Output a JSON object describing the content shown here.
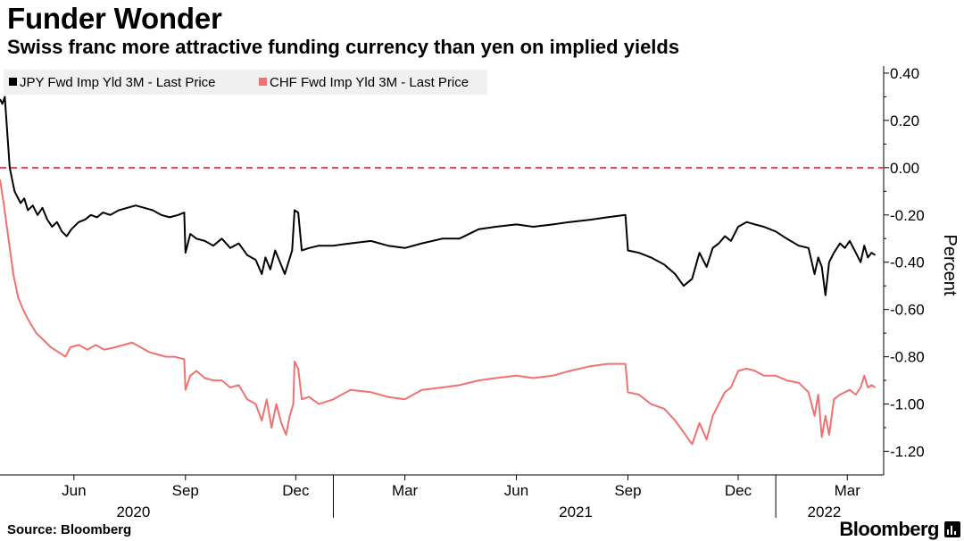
{
  "header": {
    "title": "Funder Wonder",
    "subtitle": "Swiss franc more attractive funding currency than yen on implied yields"
  },
  "footer": {
    "source": "Source: Bloomberg",
    "brand": "Bloomberg",
    "brand_icon": "bloomberg-terminal-icon"
  },
  "chart_data": {
    "type": "line",
    "x_start": "2020-04-01",
    "x_end": "2022-03-31",
    "ylim": [
      -1.3,
      0.43
    ],
    "yticks": [
      0.4,
      0.2,
      0.0,
      -0.2,
      -0.4,
      -0.6,
      -0.8,
      -1.0,
      -1.2
    ],
    "ytick_labels": [
      "0.40",
      "0.20",
      "0.00",
      "-0.20",
      "-0.40",
      "-0.60",
      "-0.80",
      "-1.00",
      "-1.20"
    ],
    "ylabel": "Percent",
    "y_axis_position": "right",
    "grid": false,
    "legend_position": "top-left",
    "reference_line": {
      "y": 0.0,
      "style": "dashed",
      "color": "#e0475b"
    },
    "x_ticks": [
      {
        "date": "2020-06-01",
        "label": "Jun"
      },
      {
        "date": "2020-09-01",
        "label": "Sep"
      },
      {
        "date": "2020-12-01",
        "label": "Dec"
      },
      {
        "date": "2021-03-01",
        "label": "Mar"
      },
      {
        "date": "2021-06-01",
        "label": "Jun"
      },
      {
        "date": "2021-09-01",
        "label": "Sep"
      },
      {
        "date": "2021-12-01",
        "label": "Dec"
      },
      {
        "date": "2022-03-01",
        "label": "Mar"
      }
    ],
    "year_labels": [
      {
        "date": "2020-07-20",
        "label": "2020"
      },
      {
        "date": "2021-07-20",
        "label": "2021"
      },
      {
        "date": "2022-02-10",
        "label": "2022"
      }
    ],
    "year_dividers": [
      "2021-01-01",
      "2022-01-01"
    ],
    "series": [
      {
        "name": "JPY Fwd Imp Yld 3M - Last Price",
        "color": "#000000",
        "points": [
          [
            "2020-04-01",
            0.29
          ],
          [
            "2020-04-03",
            0.27
          ],
          [
            "2020-04-05",
            0.3
          ],
          [
            "2020-04-07",
            0.15
          ],
          [
            "2020-04-09",
            0.0
          ],
          [
            "2020-04-11",
            -0.05
          ],
          [
            "2020-04-13",
            -0.1
          ],
          [
            "2020-04-15",
            -0.12
          ],
          [
            "2020-04-18",
            -0.15
          ],
          [
            "2020-04-21",
            -0.13
          ],
          [
            "2020-04-24",
            -0.18
          ],
          [
            "2020-04-28",
            -0.16
          ],
          [
            "2020-05-02",
            -0.2
          ],
          [
            "2020-05-06",
            -0.17
          ],
          [
            "2020-05-10",
            -0.22
          ],
          [
            "2020-05-14",
            -0.25
          ],
          [
            "2020-05-18",
            -0.23
          ],
          [
            "2020-05-22",
            -0.27
          ],
          [
            "2020-05-26",
            -0.29
          ],
          [
            "2020-05-30",
            -0.26
          ],
          [
            "2020-06-05",
            -0.23
          ],
          [
            "2020-06-10",
            -0.22
          ],
          [
            "2020-06-15",
            -0.2
          ],
          [
            "2020-06-20",
            -0.21
          ],
          [
            "2020-06-25",
            -0.19
          ],
          [
            "2020-07-01",
            -0.2
          ],
          [
            "2020-07-08",
            -0.18
          ],
          [
            "2020-07-15",
            -0.17
          ],
          [
            "2020-07-22",
            -0.16
          ],
          [
            "2020-07-29",
            -0.17
          ],
          [
            "2020-08-05",
            -0.18
          ],
          [
            "2020-08-12",
            -0.2
          ],
          [
            "2020-08-19",
            -0.21
          ],
          [
            "2020-08-26",
            -0.2
          ],
          [
            "2020-08-31",
            -0.19
          ],
          [
            "2020-09-01",
            -0.36
          ],
          [
            "2020-09-05",
            -0.28
          ],
          [
            "2020-09-10",
            -0.3
          ],
          [
            "2020-09-17",
            -0.31
          ],
          [
            "2020-09-24",
            -0.33
          ],
          [
            "2020-10-01",
            -0.3
          ],
          [
            "2020-10-08",
            -0.34
          ],
          [
            "2020-10-15",
            -0.32
          ],
          [
            "2020-10-22",
            -0.37
          ],
          [
            "2020-10-29",
            -0.39
          ],
          [
            "2020-11-03",
            -0.45
          ],
          [
            "2020-11-06",
            -0.38
          ],
          [
            "2020-11-10",
            -0.43
          ],
          [
            "2020-11-14",
            -0.35
          ],
          [
            "2020-11-18",
            -0.4
          ],
          [
            "2020-11-22",
            -0.45
          ],
          [
            "2020-11-25",
            -0.4
          ],
          [
            "2020-11-28",
            -0.35
          ],
          [
            "2020-11-30",
            -0.18
          ],
          [
            "2020-12-03",
            -0.19
          ],
          [
            "2020-12-06",
            -0.35
          ],
          [
            "2020-12-12",
            -0.34
          ],
          [
            "2020-12-20",
            -0.33
          ],
          [
            "2021-01-01",
            -0.33
          ],
          [
            "2021-01-15",
            -0.32
          ],
          [
            "2021-02-01",
            -0.31
          ],
          [
            "2021-02-15",
            -0.33
          ],
          [
            "2021-03-01",
            -0.34
          ],
          [
            "2021-03-15",
            -0.32
          ],
          [
            "2021-04-01",
            -0.3
          ],
          [
            "2021-04-15",
            -0.3
          ],
          [
            "2021-05-01",
            -0.26
          ],
          [
            "2021-05-15",
            -0.25
          ],
          [
            "2021-06-01",
            -0.24
          ],
          [
            "2021-06-15",
            -0.25
          ],
          [
            "2021-07-01",
            -0.24
          ],
          [
            "2021-07-15",
            -0.23
          ],
          [
            "2021-08-01",
            -0.22
          ],
          [
            "2021-08-15",
            -0.21
          ],
          [
            "2021-08-30",
            -0.2
          ],
          [
            "2021-09-01",
            -0.35
          ],
          [
            "2021-09-10",
            -0.36
          ],
          [
            "2021-09-20",
            -0.38
          ],
          [
            "2021-10-01",
            -0.41
          ],
          [
            "2021-10-10",
            -0.45
          ],
          [
            "2021-10-17",
            -0.5
          ],
          [
            "2021-10-24",
            -0.47
          ],
          [
            "2021-10-30",
            -0.36
          ],
          [
            "2021-11-05",
            -0.42
          ],
          [
            "2021-11-10",
            -0.34
          ],
          [
            "2021-11-15",
            -0.32
          ],
          [
            "2021-11-20",
            -0.29
          ],
          [
            "2021-11-25",
            -0.31
          ],
          [
            "2021-12-01",
            -0.25
          ],
          [
            "2021-12-08",
            -0.23
          ],
          [
            "2021-12-15",
            -0.24
          ],
          [
            "2021-12-22",
            -0.25
          ],
          [
            "2022-01-01",
            -0.27
          ],
          [
            "2022-01-10",
            -0.3
          ],
          [
            "2022-01-20",
            -0.33
          ],
          [
            "2022-01-28",
            -0.34
          ],
          [
            "2022-02-02",
            -0.45
          ],
          [
            "2022-02-05",
            -0.38
          ],
          [
            "2022-02-08",
            -0.42
          ],
          [
            "2022-02-11",
            -0.54
          ],
          [
            "2022-02-14",
            -0.4
          ],
          [
            "2022-02-18",
            -0.36
          ],
          [
            "2022-02-23",
            -0.32
          ],
          [
            "2022-02-27",
            -0.34
          ],
          [
            "2022-03-03",
            -0.31
          ],
          [
            "2022-03-08",
            -0.36
          ],
          [
            "2022-03-12",
            -0.4
          ],
          [
            "2022-03-15",
            -0.33
          ],
          [
            "2022-03-18",
            -0.38
          ],
          [
            "2022-03-21",
            -0.36
          ],
          [
            "2022-03-24",
            -0.37
          ]
        ]
      },
      {
        "name": "CHF Fwd Imp Yld 3M - Last Price",
        "color": "#f07171",
        "points": [
          [
            "2020-04-01",
            -0.05
          ],
          [
            "2020-04-04",
            -0.15
          ],
          [
            "2020-04-08",
            -0.3
          ],
          [
            "2020-04-12",
            -0.45
          ],
          [
            "2020-04-16",
            -0.55
          ],
          [
            "2020-04-20",
            -0.6
          ],
          [
            "2020-04-25",
            -0.65
          ],
          [
            "2020-05-01",
            -0.7
          ],
          [
            "2020-05-07",
            -0.73
          ],
          [
            "2020-05-13",
            -0.76
          ],
          [
            "2020-05-19",
            -0.78
          ],
          [
            "2020-05-25",
            -0.8
          ],
          [
            "2020-05-29",
            -0.76
          ],
          [
            "2020-06-05",
            -0.75
          ],
          [
            "2020-06-12",
            -0.77
          ],
          [
            "2020-06-19",
            -0.75
          ],
          [
            "2020-06-26",
            -0.77
          ],
          [
            "2020-07-05",
            -0.76
          ],
          [
            "2020-07-12",
            -0.75
          ],
          [
            "2020-07-19",
            -0.74
          ],
          [
            "2020-07-26",
            -0.76
          ],
          [
            "2020-08-02",
            -0.78
          ],
          [
            "2020-08-09",
            -0.79
          ],
          [
            "2020-08-16",
            -0.8
          ],
          [
            "2020-08-23",
            -0.8
          ],
          [
            "2020-08-31",
            -0.81
          ],
          [
            "2020-09-01",
            -0.94
          ],
          [
            "2020-09-05",
            -0.88
          ],
          [
            "2020-09-10",
            -0.86
          ],
          [
            "2020-09-17",
            -0.89
          ],
          [
            "2020-09-24",
            -0.9
          ],
          [
            "2020-10-01",
            -0.9
          ],
          [
            "2020-10-08",
            -0.93
          ],
          [
            "2020-10-15",
            -0.92
          ],
          [
            "2020-10-22",
            -0.98
          ],
          [
            "2020-10-29",
            -1.0
          ],
          [
            "2020-11-03",
            -1.07
          ],
          [
            "2020-11-07",
            -0.98
          ],
          [
            "2020-11-11",
            -1.1
          ],
          [
            "2020-11-15",
            -1.0
          ],
          [
            "2020-11-19",
            -1.08
          ],
          [
            "2020-11-23",
            -1.13
          ],
          [
            "2020-11-26",
            -1.05
          ],
          [
            "2020-11-29",
            -1.0
          ],
          [
            "2020-11-30",
            -0.82
          ],
          [
            "2020-12-03",
            -0.85
          ],
          [
            "2020-12-06",
            -0.98
          ],
          [
            "2020-12-12",
            -0.97
          ],
          [
            "2020-12-20",
            -1.0
          ],
          [
            "2021-01-01",
            -0.98
          ],
          [
            "2021-01-15",
            -0.94
          ],
          [
            "2021-02-01",
            -0.95
          ],
          [
            "2021-02-15",
            -0.97
          ],
          [
            "2021-03-01",
            -0.98
          ],
          [
            "2021-03-15",
            -0.94
          ],
          [
            "2021-04-01",
            -0.93
          ],
          [
            "2021-04-15",
            -0.92
          ],
          [
            "2021-05-01",
            -0.9
          ],
          [
            "2021-05-15",
            -0.89
          ],
          [
            "2021-06-01",
            -0.88
          ],
          [
            "2021-06-15",
            -0.89
          ],
          [
            "2021-07-01",
            -0.88
          ],
          [
            "2021-07-15",
            -0.86
          ],
          [
            "2021-08-01",
            -0.84
          ],
          [
            "2021-08-15",
            -0.83
          ],
          [
            "2021-08-30",
            -0.83
          ],
          [
            "2021-09-01",
            -0.95
          ],
          [
            "2021-09-10",
            -0.96
          ],
          [
            "2021-09-20",
            -1.0
          ],
          [
            "2021-10-01",
            -1.02
          ],
          [
            "2021-10-10",
            -1.07
          ],
          [
            "2021-10-17",
            -1.12
          ],
          [
            "2021-10-24",
            -1.17
          ],
          [
            "2021-10-30",
            -1.08
          ],
          [
            "2021-11-05",
            -1.15
          ],
          [
            "2021-11-10",
            -1.05
          ],
          [
            "2021-11-15",
            -1.0
          ],
          [
            "2021-11-20",
            -0.95
          ],
          [
            "2021-11-25",
            -0.93
          ],
          [
            "2021-12-01",
            -0.86
          ],
          [
            "2021-12-08",
            -0.85
          ],
          [
            "2021-12-15",
            -0.86
          ],
          [
            "2021-12-22",
            -0.88
          ],
          [
            "2022-01-01",
            -0.88
          ],
          [
            "2022-01-10",
            -0.9
          ],
          [
            "2022-01-20",
            -0.91
          ],
          [
            "2022-01-28",
            -0.95
          ],
          [
            "2022-02-02",
            -1.05
          ],
          [
            "2022-02-05",
            -0.96
          ],
          [
            "2022-02-08",
            -1.14
          ],
          [
            "2022-02-11",
            -1.05
          ],
          [
            "2022-02-14",
            -1.13
          ],
          [
            "2022-02-18",
            -0.98
          ],
          [
            "2022-02-23",
            -0.96
          ],
          [
            "2022-02-27",
            -0.95
          ],
          [
            "2022-03-03",
            -0.94
          ],
          [
            "2022-03-08",
            -0.96
          ],
          [
            "2022-03-12",
            -0.93
          ],
          [
            "2022-03-15",
            -0.88
          ],
          [
            "2022-03-18",
            -0.93
          ],
          [
            "2022-03-21",
            -0.92
          ],
          [
            "2022-03-24",
            -0.93
          ]
        ]
      }
    ]
  }
}
